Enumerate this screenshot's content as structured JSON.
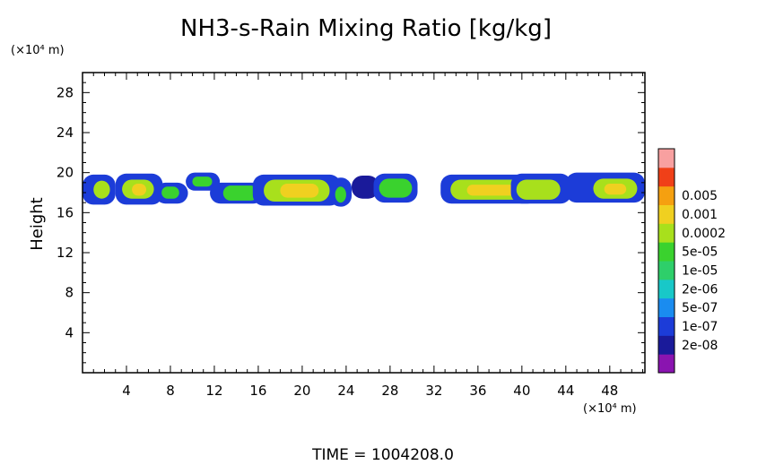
{
  "chart_data": {
    "type": "heatmap",
    "title": "NH3-s-Rain Mixing Ratio [kg/kg]",
    "xlabel": "",
    "ylabel": "Height",
    "x_unit": "(×10⁴ m)",
    "y_unit": "(×10⁴ m)",
    "xlim": [
      0,
      51.2
    ],
    "ylim": [
      0,
      30
    ],
    "xticks": [
      4,
      8,
      12,
      16,
      20,
      24,
      28,
      32,
      36,
      40,
      44,
      48
    ],
    "xtick_labels": [
      "4",
      "8",
      "12",
      "16",
      "20",
      "24",
      "28",
      "32",
      "36",
      "40",
      "44",
      "48"
    ],
    "yticks": [
      4,
      8,
      12,
      16,
      20,
      24,
      28
    ],
    "ytick_labels": [
      "4",
      "8",
      "12",
      "16",
      "20",
      "24",
      "28"
    ],
    "colorbar": {
      "levels": [
        "2e-08",
        "1e-07",
        "5e-07",
        "2e-06",
        "1e-05",
        "5e-05",
        "0.0002",
        "0.001",
        "0.005"
      ],
      "colors": [
        "#8a14b0",
        "#1a1a9a",
        "#1c3cd8",
        "#1a8cf0",
        "#18c8c8",
        "#2ecf6a",
        "#3ad22e",
        "#a8e01c",
        "#f0d020",
        "#f5a010",
        "#f04018",
        "#f8a0a0"
      ]
    },
    "cells": [
      {
        "x": [
          0.0,
          3.0
        ],
        "y": [
          16.8,
          19.8
        ],
        "level": 2
      },
      {
        "x": [
          1.0,
          2.5
        ],
        "y": [
          17.4,
          19.2
        ],
        "level": 7
      },
      {
        "x": [
          3.0,
          7.3
        ],
        "y": [
          16.8,
          19.9
        ],
        "level": 2
      },
      {
        "x": [
          3.6,
          6.5
        ],
        "y": [
          17.4,
          19.3
        ],
        "level": 7
      },
      {
        "x": [
          4.5,
          5.8
        ],
        "y": [
          17.7,
          18.9
        ],
        "level": 8
      },
      {
        "x": [
          6.6,
          9.6
        ],
        "y": [
          16.9,
          19.0
        ],
        "level": 2
      },
      {
        "x": [
          7.2,
          8.8
        ],
        "y": [
          17.4,
          18.6
        ],
        "level": 6
      },
      {
        "x": [
          9.4,
          12.5
        ],
        "y": [
          18.2,
          20.0
        ],
        "level": 2
      },
      {
        "x": [
          10.0,
          11.8
        ],
        "y": [
          18.6,
          19.6
        ],
        "level": 6
      },
      {
        "x": [
          11.6,
          16.5
        ],
        "y": [
          16.9,
          19.0
        ],
        "level": 2
      },
      {
        "x": [
          12.8,
          16.0
        ],
        "y": [
          17.2,
          18.7
        ],
        "level": 6
      },
      {
        "x": [
          15.5,
          23.5
        ],
        "y": [
          16.7,
          19.8
        ],
        "level": 2
      },
      {
        "x": [
          16.5,
          22.5
        ],
        "y": [
          17.1,
          19.3
        ],
        "level": 7
      },
      {
        "x": [
          18.0,
          21.5
        ],
        "y": [
          17.5,
          18.9
        ],
        "level": 8
      },
      {
        "x": [
          22.5,
          24.5
        ],
        "y": [
          16.6,
          19.5
        ],
        "level": 2
      },
      {
        "x": [
          23.0,
          24.0
        ],
        "y": [
          17.0,
          18.6
        ],
        "level": 6
      },
      {
        "x": [
          24.5,
          27.0
        ],
        "y": [
          17.4,
          19.7
        ],
        "level": 1
      },
      {
        "x": [
          26.5,
          30.5
        ],
        "y": [
          17.0,
          19.9
        ],
        "level": 2
      },
      {
        "x": [
          27.0,
          30.0
        ],
        "y": [
          17.5,
          19.4
        ],
        "level": 6
      },
      {
        "x": [
          32.6,
          41.5
        ],
        "y": [
          16.9,
          19.8
        ],
        "level": 2
      },
      {
        "x": [
          33.5,
          40.5
        ],
        "y": [
          17.3,
          19.3
        ],
        "level": 7
      },
      {
        "x": [
          35.0,
          39.5
        ],
        "y": [
          17.7,
          18.8
        ],
        "level": 8
      },
      {
        "x": [
          39.0,
          44.5
        ],
        "y": [
          16.9,
          19.9
        ],
        "level": 2
      },
      {
        "x": [
          39.5,
          43.5
        ],
        "y": [
          17.3,
          19.3
        ],
        "level": 7
      },
      {
        "x": [
          44.0,
          51.2
        ],
        "y": [
          17.0,
          20.0
        ],
        "level": 2
      },
      {
        "x": [
          46.5,
          50.5
        ],
        "y": [
          17.4,
          19.4
        ],
        "level": 7
      },
      {
        "x": [
          47.5,
          49.5
        ],
        "y": [
          17.8,
          18.9
        ],
        "level": 8
      }
    ],
    "caption": "TIME  =  1004208.0"
  }
}
